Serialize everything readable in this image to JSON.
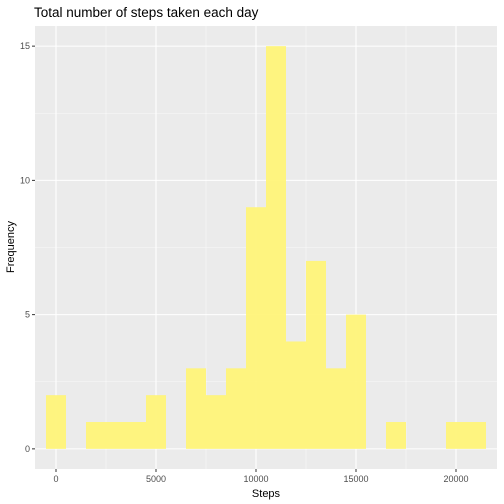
{
  "chart_data": {
    "type": "bar",
    "title": "Total number of steps taken each day",
    "xlabel": "Steps",
    "ylabel": "Frequency",
    "bin_width": 1000,
    "bins": [
      {
        "center": 0,
        "count": 2
      },
      {
        "center": 1000,
        "count": 0
      },
      {
        "center": 2000,
        "count": 1
      },
      {
        "center": 3000,
        "count": 1
      },
      {
        "center": 4000,
        "count": 1
      },
      {
        "center": 5000,
        "count": 2
      },
      {
        "center": 6000,
        "count": 0
      },
      {
        "center": 7000,
        "count": 3
      },
      {
        "center": 8000,
        "count": 2
      },
      {
        "center": 9000,
        "count": 3
      },
      {
        "center": 10000,
        "count": 9
      },
      {
        "center": 11000,
        "count": 15
      },
      {
        "center": 12000,
        "count": 4
      },
      {
        "center": 13000,
        "count": 7
      },
      {
        "center": 14000,
        "count": 3
      },
      {
        "center": 15000,
        "count": 5
      },
      {
        "center": 16000,
        "count": 0
      },
      {
        "center": 17000,
        "count": 1
      },
      {
        "center": 18000,
        "count": 0
      },
      {
        "center": 19000,
        "count": 0
      },
      {
        "center": 20000,
        "count": 1
      },
      {
        "center": 21000,
        "count": 1
      }
    ],
    "xlim": [
      -1050,
      22050
    ],
    "ylim": [
      -0.75,
      15.75
    ],
    "x_ticks": [
      0,
      5000,
      10000,
      15000,
      20000
    ],
    "x_tick_labels": [
      "0",
      "5000",
      "10000",
      "15000",
      "20000"
    ],
    "y_ticks": [
      0,
      5,
      10,
      15
    ],
    "y_tick_labels": [
      "0",
      "5",
      "10",
      "15"
    ],
    "grid": true,
    "colors": {
      "panel": "#ebebeb",
      "grid_major": "#ffffff",
      "bar_fill": "#fff475",
      "tick": "#333333"
    }
  }
}
